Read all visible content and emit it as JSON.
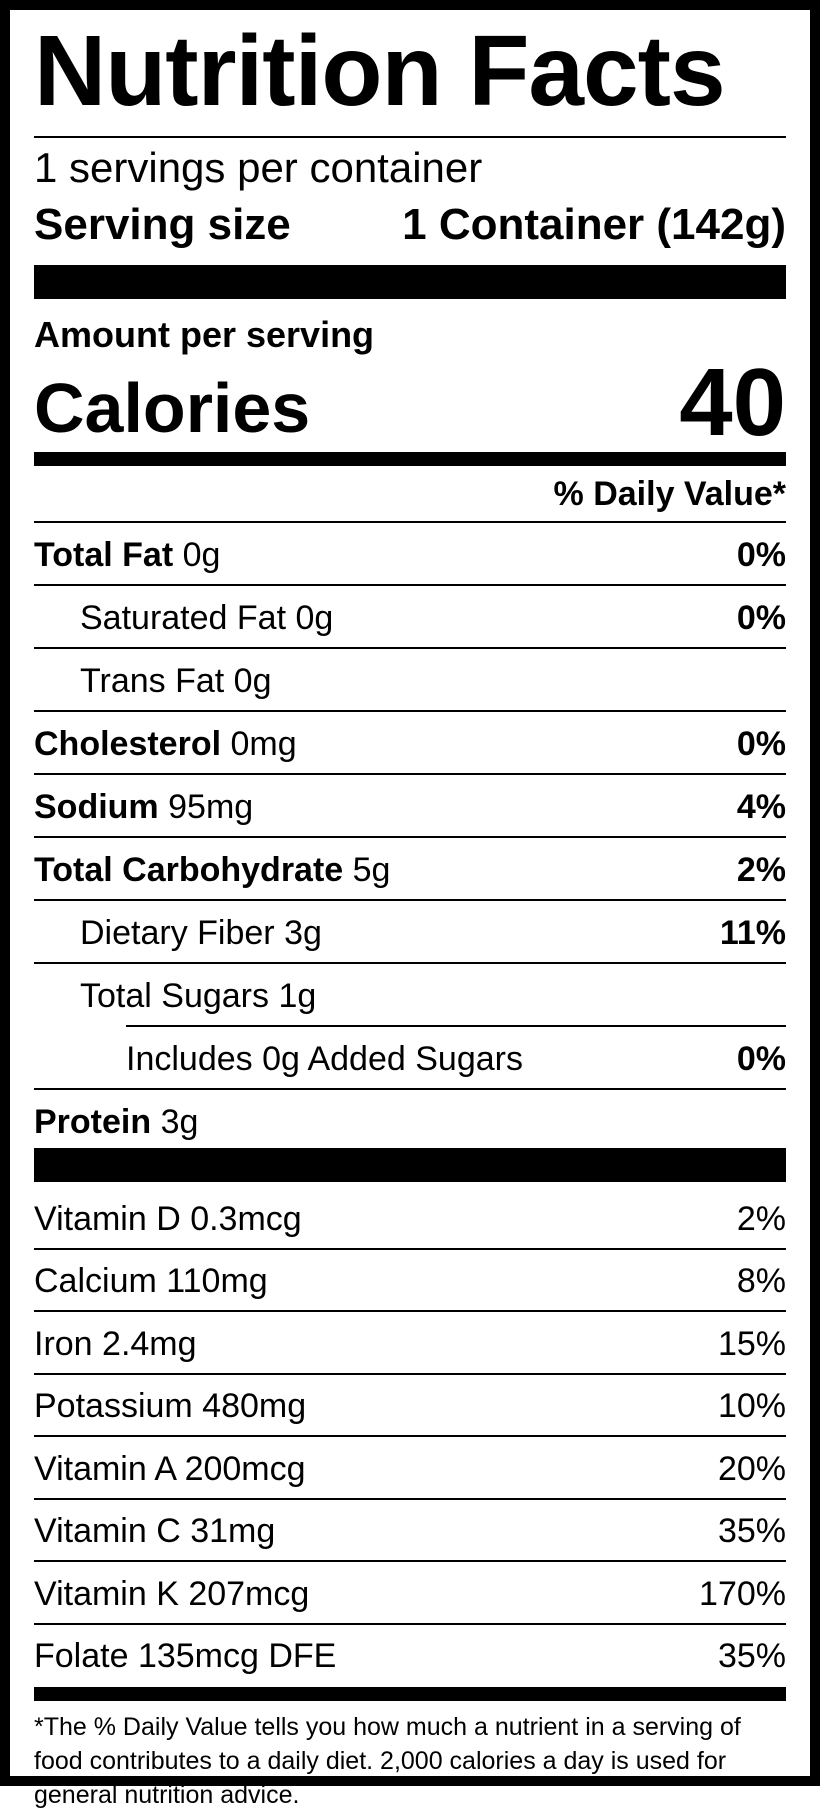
{
  "title": "Nutrition Facts",
  "servings_per_container": "1 servings per container",
  "serving_size": {
    "label": "Serving size",
    "value": "1 Container (142g)"
  },
  "amount_per_serving": "Amount per serving",
  "calories": {
    "label": "Calories",
    "value": "40"
  },
  "daily_value_header": "% Daily Value*",
  "nutrients": [
    {
      "name": "Total Fat",
      "amount": "0g",
      "dv": "0%",
      "bold": true,
      "indent": 0
    },
    {
      "name": "Saturated Fat",
      "amount": "0g",
      "dv": "0%",
      "bold": false,
      "indent": 1
    },
    {
      "name": "Trans Fat",
      "amount": "0g",
      "dv": "",
      "bold": false,
      "indent": 1
    },
    {
      "name": "Cholesterol",
      "amount": "0mg",
      "dv": "0%",
      "bold": true,
      "indent": 0
    },
    {
      "name": "Sodium",
      "amount": "95mg",
      "dv": "4%",
      "bold": true,
      "indent": 0
    },
    {
      "name": "Total Carbohydrate",
      "amount": "5g",
      "dv": "2%",
      "bold": true,
      "indent": 0
    },
    {
      "name": "Dietary Fiber",
      "amount": "3g",
      "dv": "11%",
      "bold": false,
      "indent": 1
    },
    {
      "name": "Total Sugars",
      "amount": "1g",
      "dv": "",
      "bold": false,
      "indent": 1
    },
    {
      "name": "Includes 0g Added Sugars",
      "amount": "",
      "dv": "0%",
      "bold": false,
      "indent": 2
    },
    {
      "name": "Protein",
      "amount": "3g",
      "dv": "",
      "bold": true,
      "indent": 0
    }
  ],
  "vitamins": [
    {
      "label": "Vitamin D 0.3mcg",
      "dv": "2%"
    },
    {
      "label": "Calcium 110mg",
      "dv": "8%"
    },
    {
      "label": "Iron 2.4mg",
      "dv": "15%"
    },
    {
      "label": "Potassium 480mg",
      "dv": "10%"
    },
    {
      "label": "Vitamin A 200mcg",
      "dv": "20%"
    },
    {
      "label": "Vitamin C 31mg",
      "dv": "35%"
    },
    {
      "label": "Vitamin K 207mcg",
      "dv": "170%"
    },
    {
      "label": "Folate 135mcg DFE",
      "dv": "35%"
    }
  ],
  "footnote": "*The % Daily Value tells you how much a nutrient in a serving of food contributes to a daily diet. 2,000 calories a day is used for general nutrition advice."
}
